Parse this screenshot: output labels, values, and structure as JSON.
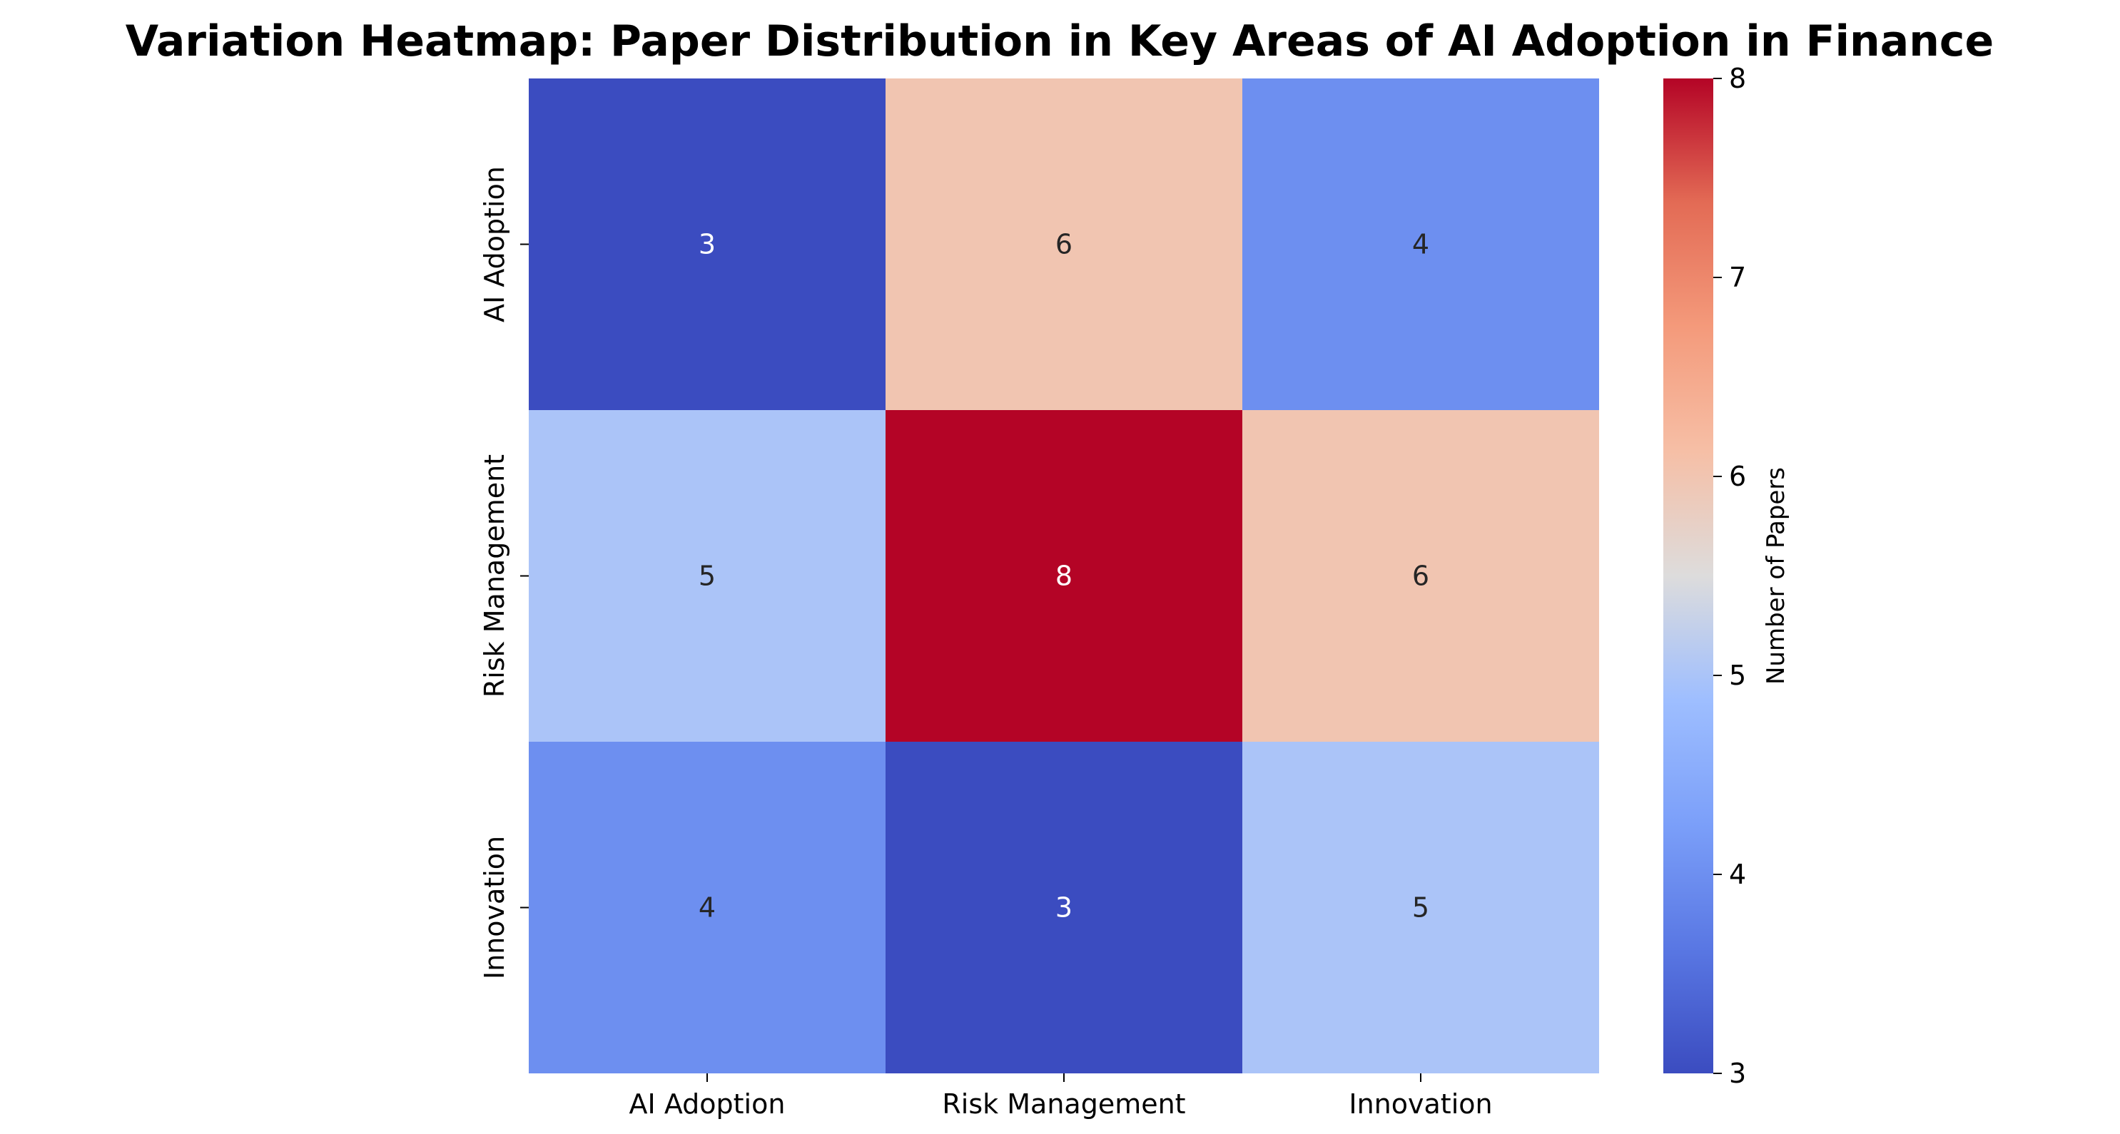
{
  "chart_data": {
    "type": "heatmap",
    "title": "Variation Heatmap: Paper Distribution in Key Areas of AI Adoption in Finance",
    "rows": [
      "AI Adoption",
      "Risk Management",
      "Innovation"
    ],
    "columns": [
      "AI Adoption",
      "Risk Management",
      "Innovation"
    ],
    "values": [
      [
        3,
        6,
        4
      ],
      [
        5,
        8,
        6
      ],
      [
        4,
        3,
        5
      ]
    ],
    "colormap": "coolwarm",
    "colorbar": {
      "label": "Number of Papers",
      "min": 3,
      "max": 8,
      "ticks": [
        3,
        4,
        5,
        6,
        7,
        8
      ]
    },
    "annotated": true,
    "grid": false
  }
}
